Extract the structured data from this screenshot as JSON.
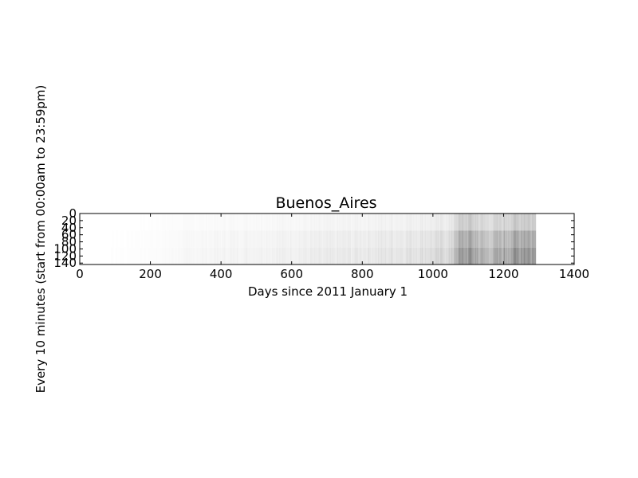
{
  "chart_data": {
    "type": "heatmap",
    "title": "Buenos_Aires",
    "xlabel": "Days since 2011 January 1",
    "ylabel": "Every 10 minutes (start from 00:00am to 23:59pm)",
    "xlim": [
      0,
      1400
    ],
    "ylim": [
      144,
      0
    ],
    "x_ticks": [
      0,
      200,
      400,
      600,
      800,
      1000,
      1200,
      1400
    ],
    "y_ticks": [
      0,
      20,
      40,
      60,
      80,
      100,
      120,
      140
    ],
    "grid": false,
    "colormap": "grayscale (white = low, dark = high)",
    "data_extent_days": [
      0,
      1292
    ],
    "intensity_profile": [
      {
        "x": 0,
        "level": 0.0
      },
      {
        "x": 200,
        "level": 0.01
      },
      {
        "x": 300,
        "level": 0.03
      },
      {
        "x": 500,
        "level": 0.05
      },
      {
        "x": 700,
        "level": 0.07
      },
      {
        "x": 900,
        "level": 0.1
      },
      {
        "x": 1000,
        "level": 0.13
      },
      {
        "x": 1055,
        "level": 0.16
      },
      {
        "x": 1060,
        "level": 0.3
      },
      {
        "x": 1100,
        "level": 0.38
      },
      {
        "x": 1150,
        "level": 0.25
      },
      {
        "x": 1200,
        "level": 0.32
      },
      {
        "x": 1260,
        "level": 0.42
      },
      {
        "x": 1290,
        "level": 0.35
      }
    ]
  }
}
